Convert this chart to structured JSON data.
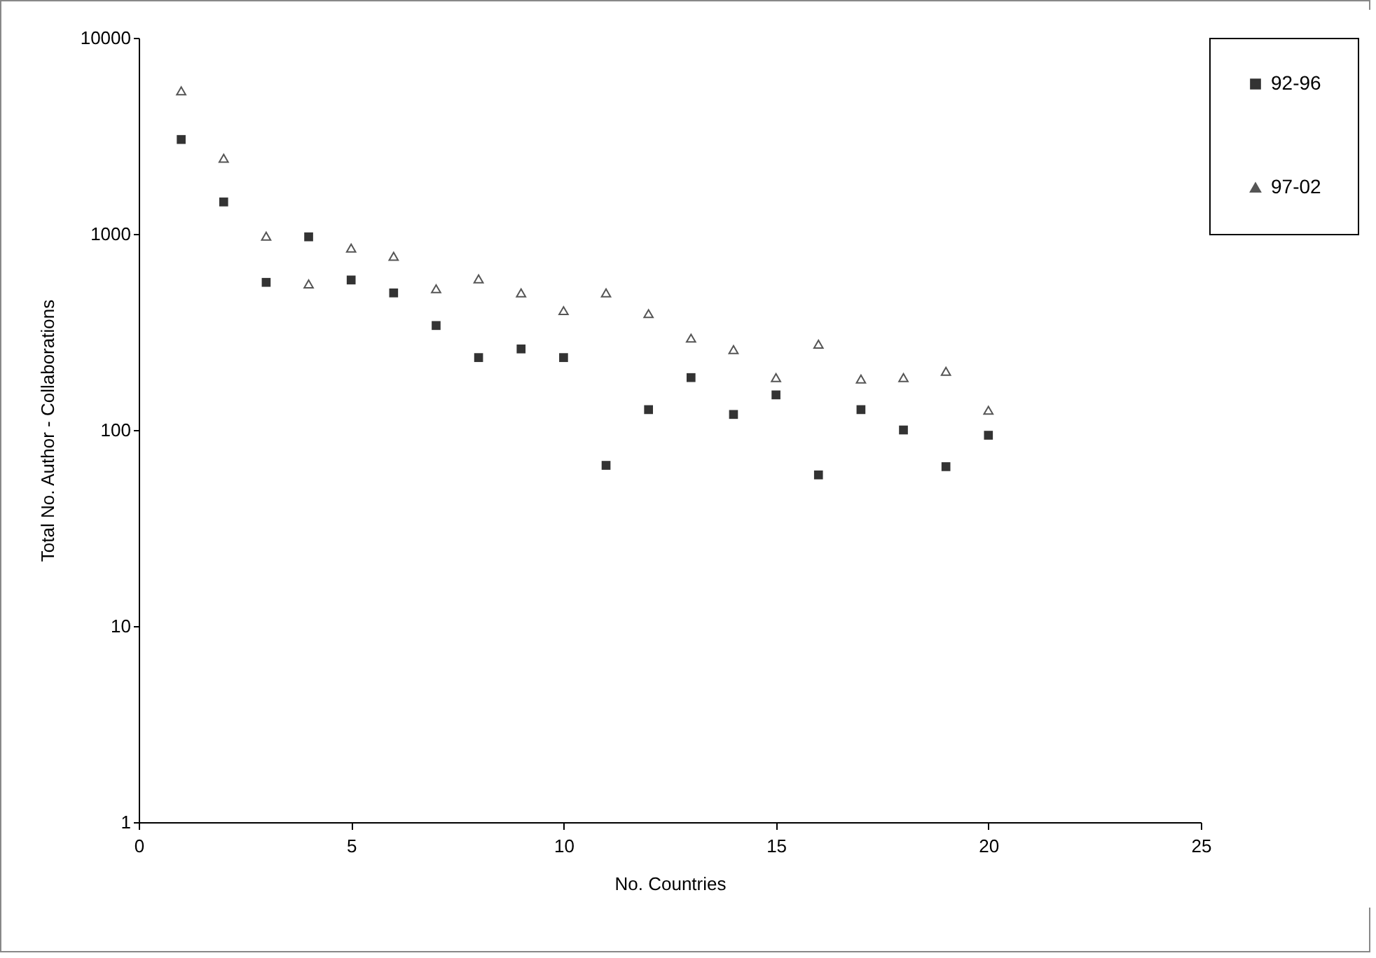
{
  "chart_data": {
    "type": "scatter",
    "xlabel": "No. Countries",
    "ylabel": "Total No. Author - Collaborations",
    "x": [
      1,
      2,
      3,
      4,
      5,
      6,
      7,
      8,
      9,
      10,
      11,
      12,
      13,
      14,
      15,
      16,
      17,
      18,
      19,
      20
    ],
    "series": [
      {
        "name": "92-96",
        "color": "#333333",
        "marker": "square",
        "values": [
          3030,
          1455,
          566,
          966,
          582,
          500,
          341,
          234,
          259,
          234,
          66,
          127,
          185,
          120,
          151,
          59,
          127,
          100,
          65,
          94
        ]
      },
      {
        "name": "97-02",
        "color": "#555555",
        "marker": "triangle",
        "values": [
          5360,
          2430,
          973,
          555,
          847,
          769,
          525,
          590,
          500,
          406,
          500,
          392,
          294,
          257,
          185,
          274,
          182,
          185,
          199,
          126
        ]
      }
    ],
    "log": "y",
    "xlim": [
      0,
      25
    ],
    "xticks": [
      0,
      5,
      10,
      15,
      20,
      25
    ],
    "ylim": [
      1,
      10000
    ],
    "yticks": [
      1,
      10,
      100,
      1000,
      10000
    ],
    "grid": false,
    "legend": "right"
  }
}
